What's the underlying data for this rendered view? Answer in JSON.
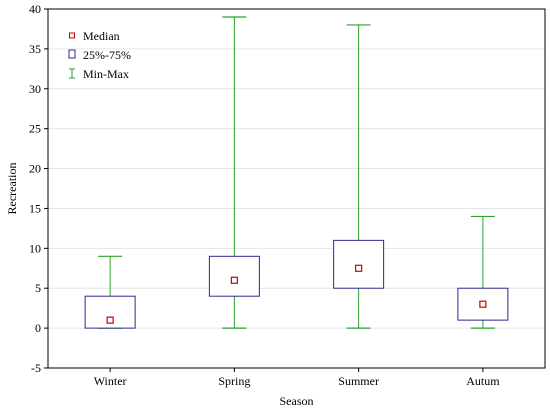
{
  "chart_data": {
    "type": "boxplot",
    "title": "",
    "xlabel": "Season",
    "ylabel": "Recreation",
    "ylim": [
      -5,
      40
    ],
    "yticks": [
      -5,
      0,
      5,
      10,
      15,
      20,
      25,
      30,
      35,
      40
    ],
    "grid": true,
    "legend": {
      "placement": "top-left",
      "items": [
        {
          "symbol": "median",
          "label": "Median"
        },
        {
          "symbol": "box",
          "label": "25%-75%"
        },
        {
          "symbol": "whisker",
          "label": "Min-Max"
        }
      ]
    },
    "categories": [
      "Winter",
      "Spring",
      "Summer",
      "Autum"
    ],
    "boxes": [
      {
        "category": "Winter",
        "min": 0,
        "q1": 0,
        "median": 1,
        "q3": 4,
        "max": 9
      },
      {
        "category": "Spring",
        "min": 0,
        "q1": 4,
        "median": 6,
        "q3": 9,
        "max": 39
      },
      {
        "category": "Summer",
        "min": 0,
        "q1": 5,
        "median": 7.5,
        "q3": 11,
        "max": 38
      },
      {
        "category": "Autum",
        "min": 0,
        "q1": 1,
        "median": 3,
        "q3": 5,
        "max": 14
      }
    ],
    "colors": {
      "box": "#2a2a8c",
      "whisker": "#2ca02c",
      "median": "#cc0000",
      "grid": "#e6e6e6",
      "axis": "#000000"
    }
  }
}
